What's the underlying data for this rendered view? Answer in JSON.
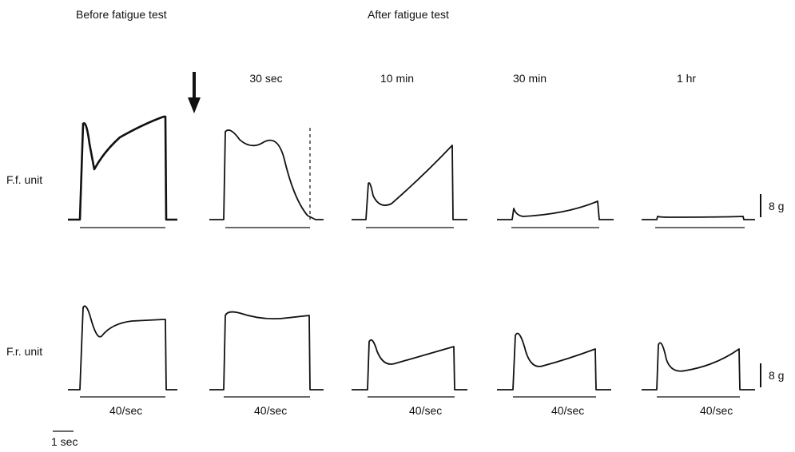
{
  "headers": {
    "before": "Before fatigue test",
    "after": "After fatigue test"
  },
  "times": [
    "30 sec",
    "10 min",
    "30 min",
    "1 hr"
  ],
  "rows": [
    {
      "label": "F.f. unit",
      "scale": "8 g"
    },
    {
      "label": "F.r. unit",
      "scale": "8 g"
    }
  ],
  "stimulus": "40/sec",
  "time_bar": "1 sec"
}
